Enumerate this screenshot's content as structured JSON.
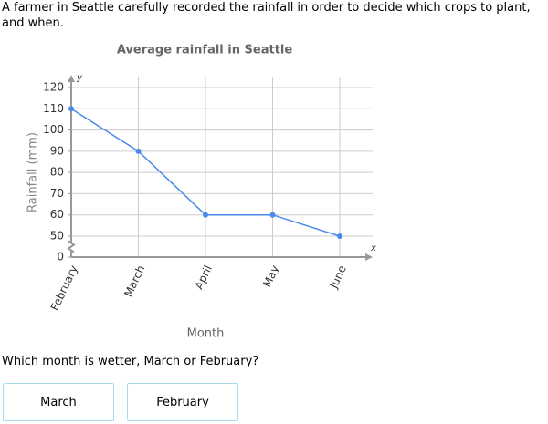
{
  "question_intro": "A farmer in Seattle carefully recorded the rainfall in order to decide which crops to plant, and when.",
  "chart_data": {
    "type": "line",
    "title": "Average rainfall in Seattle",
    "x_label": "Month",
    "y_label": "Rainfall (mm)",
    "x_axis_letter": "x",
    "y_axis_letter": "y",
    "categories": [
      "February",
      "March",
      "April",
      "May",
      "June"
    ],
    "values": [
      110,
      90,
      60,
      60,
      50
    ],
    "color": "#4a8ae8",
    "ylim": [
      0,
      120
    ],
    "yticks": [
      0,
      50,
      60,
      70,
      80,
      90,
      100,
      110,
      120
    ],
    "axis_break": [
      0,
      50
    ],
    "grid": true
  },
  "question": "Which month is wetter, March or February?",
  "options": [
    "March",
    "February"
  ]
}
